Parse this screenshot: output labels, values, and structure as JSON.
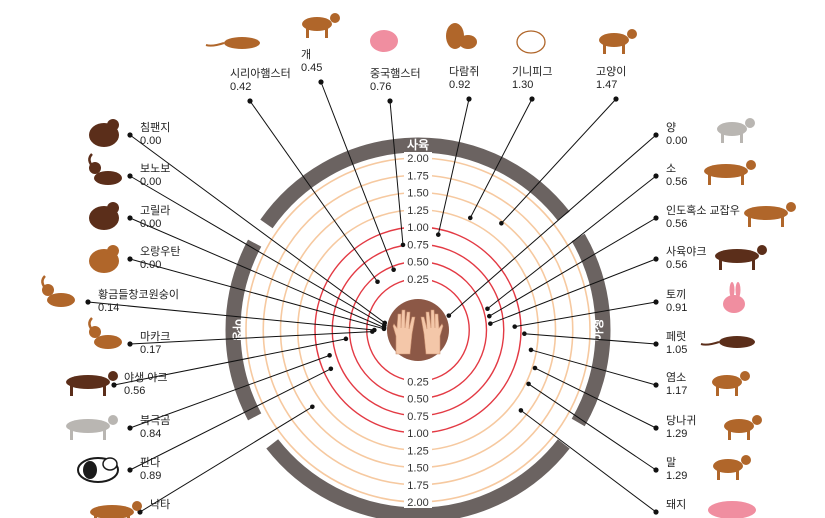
{
  "colors": {
    "ring_dark": "#6b6361",
    "ring_light": "#f6c9a0",
    "ring_red": "#e33a44",
    "palm_circle": "#8c5846",
    "palm_skin": "#f4c7a9",
    "leader": "#111111",
    "animal_brown": "#b0662a",
    "animal_dark": "#5b2e1a",
    "animal_gray": "#b9b6b2",
    "animal_pink": "#f08ea0",
    "panda_black": "#1a1a1a"
  },
  "sectors": {
    "top": "사육",
    "left": "야생",
    "right": "야생"
  },
  "chart_data": {
    "type": "radial",
    "scale_labels": [
      "2.00",
      "1.75",
      "1.50",
      "1.25",
      "1.00",
      "0.75",
      "0.50",
      "0.25"
    ],
    "scale_labels_lower": [
      "0.25",
      "0.50",
      "0.75",
      "1.00",
      "1.25",
      "1.50",
      "1.75",
      "2.00"
    ],
    "rmax": 2.0,
    "animals": [
      {
        "name": "시리아햄스터",
        "value": "0.42",
        "group": "사육",
        "icon": "rat-icon"
      },
      {
        "name": "개",
        "value": "0.45",
        "group": "사육",
        "icon": "dog-icon"
      },
      {
        "name": "중국햄스터",
        "value": "0.76",
        "group": "사육",
        "icon": "hamster-icon"
      },
      {
        "name": "다람쥐",
        "value": "0.92",
        "group": "사육",
        "icon": "squirrel-icon"
      },
      {
        "name": "기니피그",
        "value": "1.30",
        "group": "사육",
        "icon": "guinea-pig-icon"
      },
      {
        "name": "고양이",
        "value": "1.47",
        "group": "사육",
        "icon": "cat-icon"
      },
      {
        "name": "침팬지",
        "value": "0.00",
        "group": "야생",
        "icon": "chimpanzee-icon"
      },
      {
        "name": "보노보",
        "value": "0.00",
        "group": "야생",
        "icon": "bonobo-icon"
      },
      {
        "name": "고릴라",
        "value": "0.00",
        "group": "야생",
        "icon": "gorilla-icon"
      },
      {
        "name": "오랑우탄",
        "value": "0.00",
        "group": "야생",
        "icon": "orangutan-icon"
      },
      {
        "name": "황금들창코원숭이",
        "value": "0.14",
        "group": "야생",
        "icon": "golden-monkey-icon"
      },
      {
        "name": "마카크",
        "value": "0.17",
        "group": "야생",
        "icon": "macaque-icon"
      },
      {
        "name": "야생 야크",
        "value": "0.56",
        "group": "야생",
        "icon": "wild-yak-icon"
      },
      {
        "name": "북극곰",
        "value": "0.84",
        "group": "야생",
        "icon": "polar-bear-icon"
      },
      {
        "name": "판다",
        "value": "0.89",
        "group": "야생",
        "icon": "panda-icon"
      },
      {
        "name": "낙타",
        "value": "",
        "group": "야생",
        "icon": "camel-icon"
      },
      {
        "name": "양",
        "value": "0.00",
        "group": "야생",
        "icon": "sheep-icon"
      },
      {
        "name": "소",
        "value": "0.56",
        "group": "야생",
        "icon": "cow-icon"
      },
      {
        "name": "인도혹소 교잡우",
        "value": "0.56",
        "group": "야생",
        "icon": "zebu-icon"
      },
      {
        "name": "사육야크",
        "value": "0.56",
        "group": "야생",
        "icon": "domestic-yak-icon"
      },
      {
        "name": "토끼",
        "value": "0.91",
        "group": "야생",
        "icon": "rabbit-icon"
      },
      {
        "name": "페럿",
        "value": "1.05",
        "group": "야생",
        "icon": "ferret-icon"
      },
      {
        "name": "염소",
        "value": "1.17",
        "group": "야생",
        "icon": "goat-icon"
      },
      {
        "name": "당나귀",
        "value": "1.29",
        "group": "야생",
        "icon": "donkey-icon"
      },
      {
        "name": "말",
        "value": "1.29",
        "group": "야생",
        "icon": "horse-icon"
      },
      {
        "name": "돼지",
        "value": "",
        "group": "야생",
        "icon": "pig-icon"
      }
    ]
  }
}
